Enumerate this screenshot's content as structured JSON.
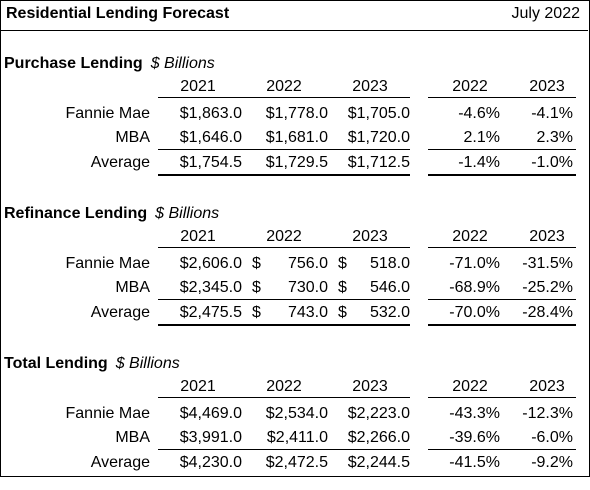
{
  "header": {
    "title": "Residential Lending Forecast",
    "date": "July 2022"
  },
  "sections": [
    {
      "name": "Purchase Lending",
      "unit": "$ Billions",
      "years": [
        "2021",
        "2022",
        "2023"
      ],
      "pct_years": [
        "2022",
        "2023"
      ],
      "rows": [
        {
          "label": "Fannie Mae",
          "values": [
            "$1,863.0",
            "$1,778.0",
            "$1,705.0"
          ],
          "pcts": [
            "-4.6%",
            "-4.1%"
          ]
        },
        {
          "label": "MBA",
          "values": [
            "$1,646.0",
            "$1,681.0",
            "$1,720.0"
          ],
          "pcts": [
            "2.1%",
            "2.3%"
          ]
        },
        {
          "label": "Average",
          "values": [
            "$1,754.5",
            "$1,729.5",
            "$1,712.5"
          ],
          "pcts": [
            "-1.4%",
            "-1.0%"
          ]
        }
      ]
    },
    {
      "name": "Refinance Lending",
      "unit": "$ Billions",
      "years": [
        "2021",
        "2022",
        "2023"
      ],
      "pct_years": [
        "2022",
        "2023"
      ],
      "rows": [
        {
          "label": "Fannie Mae",
          "values": [
            "$2,606.0",
            "$",
            "$"
          ],
          "nums": [
            "",
            "756.0",
            "518.0"
          ],
          "pcts": [
            "-71.0%",
            "-31.5%"
          ]
        },
        {
          "label": "MBA",
          "values": [
            "$2,345.0",
            "$",
            "$"
          ],
          "nums": [
            "",
            "730.0",
            "546.0"
          ],
          "pcts": [
            "-68.9%",
            "-25.2%"
          ]
        },
        {
          "label": "Average",
          "values": [
            "$2,475.5",
            "$",
            "$"
          ],
          "nums": [
            "",
            "743.0",
            "532.0"
          ],
          "pcts": [
            "-70.0%",
            "-28.4%"
          ]
        }
      ]
    },
    {
      "name": "Total Lending",
      "unit": "$ Billions",
      "years": [
        "2021",
        "2022",
        "2023"
      ],
      "pct_years": [
        "2022",
        "2023"
      ],
      "rows": [
        {
          "label": "Fannie Mae",
          "values": [
            "$4,469.0",
            "$2,534.0",
            "$2,223.0"
          ],
          "pcts": [
            "-43.3%",
            "-12.3%"
          ]
        },
        {
          "label": "MBA",
          "values": [
            "$3,991.0",
            "$2,411.0",
            "$2,266.0"
          ],
          "pcts": [
            "-39.6%",
            "-6.0%"
          ]
        },
        {
          "label": "Average",
          "values": [
            "$4,230.0",
            "$2,472.5",
            "$2,244.5"
          ],
          "pcts": [
            "-41.5%",
            "-9.2%"
          ]
        }
      ]
    }
  ]
}
